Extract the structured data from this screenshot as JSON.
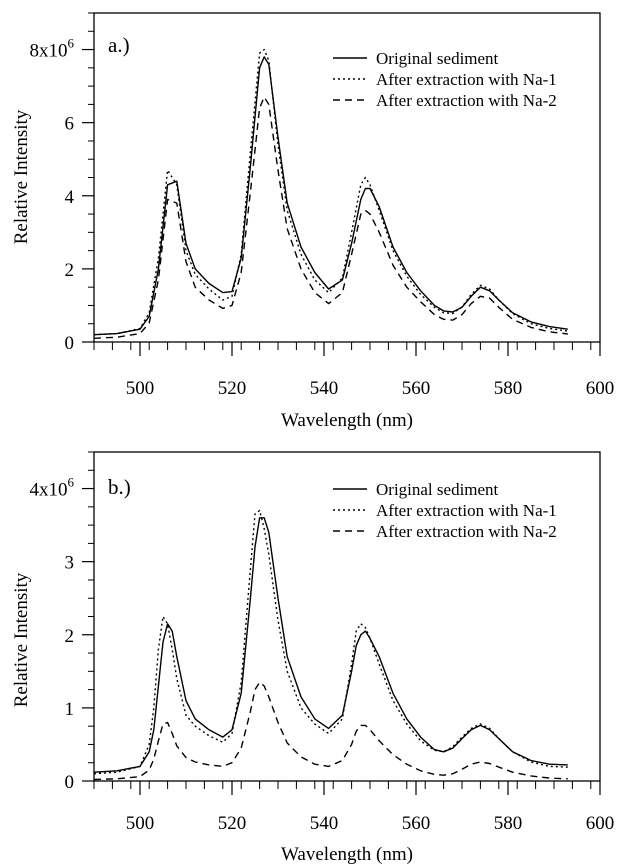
{
  "chart_data": [
    {
      "type": "line",
      "panel_label": "a.)",
      "xlabel": "Wavelength (nm)",
      "ylabel": "Relative Intensity",
      "xlim": [
        490,
        600
      ],
      "ylim": [
        0,
        9000000
      ],
      "x_ticks": [
        500,
        520,
        540,
        560,
        580,
        600
      ],
      "x_tick_labels": [
        "500",
        "520",
        "540",
        "560",
        "580",
        "600"
      ],
      "y_ticks": [
        0,
        2000000,
        4000000,
        6000000,
        8000000
      ],
      "y_tick_labels": [
        "0",
        "2",
        "4",
        "6",
        "8x10"
      ],
      "y_exponent": "6",
      "grid": false,
      "legend_position": "top-right",
      "x": [
        490,
        495,
        500,
        502,
        504,
        506,
        508,
        510,
        512,
        515,
        518,
        520,
        522,
        524,
        526,
        527,
        528,
        530,
        532,
        535,
        538,
        541,
        544,
        546,
        548,
        549,
        550,
        552,
        555,
        558,
        561,
        564,
        566,
        568,
        570,
        572,
        574,
        576,
        578,
        581,
        585,
        589,
        593
      ],
      "series": [
        {
          "name": "Original sediment",
          "dash": "solid",
          "values": [
            200000,
            230000,
            350000,
            700000,
            2000000,
            4300000,
            4400000,
            2700000,
            2000000,
            1600000,
            1350000,
            1380000,
            2300000,
            4800000,
            7500000,
            7800000,
            7600000,
            5600000,
            3800000,
            2600000,
            1900000,
            1450000,
            1700000,
            2700000,
            3900000,
            4200000,
            4200000,
            3700000,
            2600000,
            1900000,
            1400000,
            1000000,
            850000,
            820000,
            950000,
            1250000,
            1500000,
            1400000,
            1150000,
            800000,
            550000,
            420000,
            350000
          ]
        },
        {
          "name": "After extraction with Na-1",
          "dash": "dotted",
          "values": [
            200000,
            230000,
            370000,
            800000,
            2300000,
            4700000,
            4300000,
            2500000,
            1850000,
            1450000,
            1150000,
            1250000,
            2400000,
            5200000,
            7900000,
            8000000,
            7700000,
            5400000,
            3600000,
            2400000,
            1700000,
            1350000,
            1750000,
            3000000,
            4300000,
            4500000,
            4300000,
            3600000,
            2500000,
            1800000,
            1300000,
            950000,
            800000,
            780000,
            960000,
            1300000,
            1550000,
            1450000,
            1150000,
            780000,
            500000,
            370000,
            300000
          ]
        },
        {
          "name": "After extraction with Na-2",
          "dash": "dashed",
          "values": [
            100000,
            130000,
            230000,
            520000,
            1700000,
            3900000,
            3800000,
            2200000,
            1500000,
            1150000,
            920000,
            1000000,
            1900000,
            4100000,
            6400000,
            6700000,
            6500000,
            4700000,
            3100000,
            2000000,
            1350000,
            1050000,
            1350000,
            2400000,
            3500000,
            3600000,
            3500000,
            3000000,
            2100000,
            1500000,
            1100000,
            750000,
            620000,
            600000,
            750000,
            1050000,
            1250000,
            1200000,
            950000,
            620000,
            400000,
            280000,
            220000
          ]
        }
      ]
    },
    {
      "type": "line",
      "panel_label": "b.)",
      "xlabel": "Wavelength (nm)",
      "ylabel": "Relative Intensity",
      "xlim": [
        490,
        600
      ],
      "ylim": [
        0,
        4500000
      ],
      "x_ticks": [
        500,
        520,
        540,
        560,
        580,
        600
      ],
      "x_tick_labels": [
        "500",
        "520",
        "540",
        "560",
        "580",
        "600"
      ],
      "y_ticks": [
        0,
        1000000,
        2000000,
        3000000,
        4000000
      ],
      "y_tick_labels": [
        "0",
        "1",
        "2",
        "3",
        "4x10"
      ],
      "y_exponent": "6",
      "grid": false,
      "legend_position": "top-right",
      "x": [
        490,
        495,
        500,
        502,
        503,
        504,
        505,
        506,
        507,
        508,
        510,
        512,
        515,
        518,
        520,
        522,
        524,
        525,
        526,
        527,
        528,
        530,
        532,
        535,
        538,
        541,
        544,
        546,
        547,
        548,
        549,
        550,
        552,
        555,
        558,
        561,
        564,
        566,
        568,
        570,
        572,
        574,
        576,
        578,
        581,
        585,
        589,
        593
      ],
      "series": [
        {
          "name": "Original sediment",
          "dash": "solid",
          "values": [
            120000,
            140000,
            200000,
            400000,
            700000,
            1300000,
            1900000,
            2150000,
            2050000,
            1700000,
            1100000,
            850000,
            700000,
            600000,
            700000,
            1200000,
            2500000,
            3200000,
            3600000,
            3600000,
            3400000,
            2500000,
            1700000,
            1150000,
            850000,
            720000,
            900000,
            1500000,
            1850000,
            2000000,
            2050000,
            1950000,
            1700000,
            1200000,
            850000,
            600000,
            430000,
            400000,
            450000,
            580000,
            700000,
            760000,
            700000,
            580000,
            400000,
            280000,
            230000,
            220000
          ]
        },
        {
          "name": "After extraction with Na-1",
          "dash": "dotted",
          "values": [
            100000,
            120000,
            200000,
            500000,
            1000000,
            1800000,
            2250000,
            2150000,
            1800000,
            1400000,
            900000,
            750000,
            620000,
            530000,
            650000,
            1350000,
            2900000,
            3650000,
            3700000,
            3450000,
            3100000,
            2200000,
            1500000,
            1000000,
            780000,
            650000,
            850000,
            1600000,
            2050000,
            2150000,
            2100000,
            1950000,
            1600000,
            1100000,
            780000,
            550000,
            420000,
            400000,
            470000,
            600000,
            720000,
            780000,
            720000,
            580000,
            400000,
            260000,
            200000,
            190000
          ]
        },
        {
          "name": "After extraction with Na-2",
          "dash": "dashed",
          "values": [
            20000,
            30000,
            60000,
            150000,
            300000,
            550000,
            780000,
            800000,
            650000,
            480000,
            320000,
            260000,
            220000,
            200000,
            250000,
            450000,
            950000,
            1250000,
            1350000,
            1300000,
            1150000,
            800000,
            520000,
            330000,
            230000,
            200000,
            280000,
            500000,
            680000,
            760000,
            760000,
            700000,
            550000,
            360000,
            230000,
            140000,
            90000,
            80000,
            100000,
            160000,
            230000,
            260000,
            240000,
            190000,
            120000,
            70000,
            40000,
            30000
          ]
        }
      ]
    }
  ]
}
